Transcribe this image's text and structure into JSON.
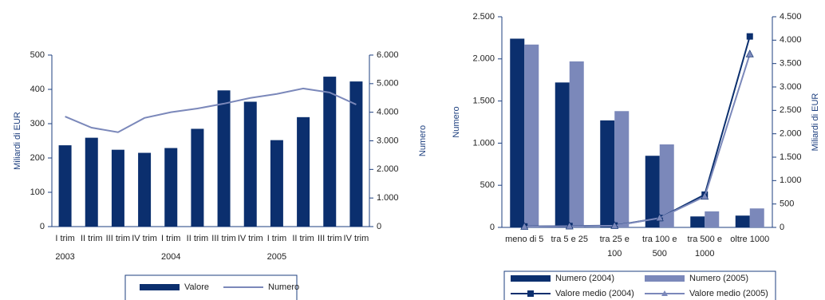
{
  "chart_data": [
    {
      "type": "bar",
      "categories": [
        "I trim",
        "II trim",
        "III trim",
        "IV trim",
        "I trim",
        "II trim",
        "III trim",
        "IV trim",
        "I trim",
        "II trim",
        "III trim",
        "IV trim"
      ],
      "years": [
        2003,
        2004,
        2005
      ],
      "ylabel": "Miliardi di EUR",
      "y2label": "Numero",
      "ylim": [
        0,
        500
      ],
      "yticks": [
        0,
        100,
        200,
        300,
        400,
        500
      ],
      "y2lim": [
        0,
        6000
      ],
      "y2ticks": [
        0,
        {
          "value": 1000,
          "label": "1.000"
        },
        {
          "value": 2000,
          "label": "2.000"
        },
        {
          "value": 3000,
          "label": "3.000"
        },
        {
          "value": 4000,
          "label": "4.000"
        },
        {
          "value": 5000,
          "label": "5.000"
        },
        {
          "value": 6000,
          "label": "6.000"
        }
      ],
      "series": [
        {
          "name": "Valore",
          "type": "bar",
          "color": "#0b2f6e",
          "values": [
            237,
            259,
            224,
            215,
            229,
            285,
            397,
            364,
            252,
            319,
            437,
            423
          ]
        },
        {
          "name": "Numero",
          "type": "line",
          "axis": "y2",
          "color": "#7b88ba",
          "values": [
            3850,
            3460,
            3300,
            3800,
            4000,
            4130,
            4300,
            4500,
            4640,
            4830,
            4690,
            4270
          ]
        }
      ]
    },
    {
      "type": "bar",
      "categories": [
        "meno di 5",
        "tra 5 e 25",
        "tra 25 e\n100",
        "tra 100 e\n500",
        "tra 500 e\n1000",
        "oltre 1000"
      ],
      "ylabel": "Numero",
      "y2label": "Miliardi di EUR",
      "ylim": [
        0,
        2500
      ],
      "yticks": [
        0,
        500,
        {
          "value": 1000,
          "label": "1.000"
        },
        {
          "value": 1500,
          "label": "1.500"
        },
        {
          "value": 2000,
          "label": "2.000"
        },
        {
          "value": 2500,
          "label": "2.500"
        }
      ],
      "y2lim": [
        0,
        4500
      ],
      "y2ticks": [
        0,
        500,
        {
          "value": 1000,
          "label": "1.000"
        },
        {
          "value": 1500,
          "label": "1.500"
        },
        {
          "value": 2000,
          "label": "2.000"
        },
        {
          "value": 2500,
          "label": "2.500"
        },
        {
          "value": 3000,
          "label": "3.000"
        },
        {
          "value": 3500,
          "label": "3.500"
        },
        {
          "value": 4000,
          "label": "4.000"
        },
        {
          "value": 4500,
          "label": "4.500"
        }
      ],
      "series": [
        {
          "name": "Numero (2004)",
          "type": "bar",
          "color": "#0b2f6e",
          "values": [
            2240,
            1720,
            1270,
            850,
            130,
            140
          ]
        },
        {
          "name": "Numero (2005)",
          "type": "bar",
          "color": "#7b88ba",
          "values": [
            2170,
            1970,
            1380,
            985,
            190,
            225
          ]
        },
        {
          "name": "Valore medio (2004)",
          "type": "line",
          "axis": "y2",
          "marker": "square",
          "color": "#0b2f6e",
          "values": [
            20,
            30,
            40,
            200,
            700,
            4080
          ]
        },
        {
          "name": "Valore medio (2005)",
          "type": "line",
          "axis": "y2",
          "marker": "triangle",
          "color": "#7b88ba",
          "values": [
            15,
            25,
            35,
            200,
            660,
            3700
          ]
        }
      ]
    }
  ]
}
